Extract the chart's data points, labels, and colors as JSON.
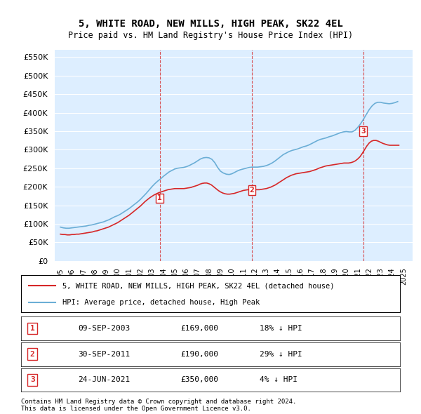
{
  "title": "5, WHITE ROAD, NEW MILLS, HIGH PEAK, SK22 4EL",
  "subtitle": "Price paid vs. HM Land Registry's House Price Index (HPI)",
  "legend_line1": "5, WHITE ROAD, NEW MILLS, HIGH PEAK, SK22 4EL (detached house)",
  "legend_line2": "HPI: Average price, detached house, High Peak",
  "footer1": "Contains HM Land Registry data © Crown copyright and database right 2024.",
  "footer2": "This data is licensed under the Open Government Licence v3.0.",
  "transactions": [
    {
      "num": 1,
      "date": "09-SEP-2003",
      "price": 169000,
      "hpi_diff": "18% ↓ HPI"
    },
    {
      "num": 2,
      "date": "30-SEP-2011",
      "price": 190000,
      "hpi_diff": "29% ↓ HPI"
    },
    {
      "num": 3,
      "date": "24-JUN-2021",
      "price": 350000,
      "hpi_diff": "4% ↓ HPI"
    }
  ],
  "vline_dates": [
    2003.69,
    2011.75,
    2021.48
  ],
  "hpi_color": "#6baed6",
  "price_color": "#d62728",
  "vline_color": "#d62728",
  "background_chart": "#ddeeff",
  "ylim": [
    0,
    570000
  ],
  "yticks": [
    0,
    50000,
    100000,
    150000,
    200000,
    250000,
    300000,
    350000,
    400000,
    450000,
    500000,
    550000
  ],
  "xlim_start": 1994.5,
  "xlim_end": 2025.8,
  "hpi_x": [
    1995.0,
    1995.25,
    1995.5,
    1995.75,
    1996.0,
    1996.25,
    1996.5,
    1996.75,
    1997.0,
    1997.25,
    1997.5,
    1997.75,
    1998.0,
    1998.25,
    1998.5,
    1998.75,
    1999.0,
    1999.25,
    1999.5,
    1999.75,
    2000.0,
    2000.25,
    2000.5,
    2000.75,
    2001.0,
    2001.25,
    2001.5,
    2001.75,
    2002.0,
    2002.25,
    2002.5,
    2002.75,
    2003.0,
    2003.25,
    2003.5,
    2003.75,
    2004.0,
    2004.25,
    2004.5,
    2004.75,
    2005.0,
    2005.25,
    2005.5,
    2005.75,
    2006.0,
    2006.25,
    2006.5,
    2006.75,
    2007.0,
    2007.25,
    2007.5,
    2007.75,
    2008.0,
    2008.25,
    2008.5,
    2008.75,
    2009.0,
    2009.25,
    2009.5,
    2009.75,
    2010.0,
    2010.25,
    2010.5,
    2010.75,
    2011.0,
    2011.25,
    2011.5,
    2011.75,
    2012.0,
    2012.25,
    2012.5,
    2012.75,
    2013.0,
    2013.25,
    2013.5,
    2013.75,
    2014.0,
    2014.25,
    2014.5,
    2014.75,
    2015.0,
    2015.25,
    2015.5,
    2015.75,
    2016.0,
    2016.25,
    2016.5,
    2016.75,
    2017.0,
    2017.25,
    2017.5,
    2017.75,
    2018.0,
    2018.25,
    2018.5,
    2018.75,
    2019.0,
    2019.25,
    2019.5,
    2019.75,
    2020.0,
    2020.25,
    2020.5,
    2020.75,
    2021.0,
    2021.25,
    2021.5,
    2021.75,
    2022.0,
    2022.25,
    2022.5,
    2022.75,
    2023.0,
    2023.25,
    2023.5,
    2023.75,
    2024.0,
    2024.25,
    2024.5
  ],
  "hpi_y": [
    91000,
    89000,
    88000,
    88000,
    89000,
    90000,
    91000,
    92000,
    93000,
    94000,
    96000,
    97000,
    99000,
    101000,
    103000,
    105000,
    108000,
    111000,
    115000,
    119000,
    122000,
    126000,
    131000,
    136000,
    141000,
    147000,
    153000,
    159000,
    166000,
    174000,
    182000,
    191000,
    200000,
    208000,
    215000,
    221000,
    228000,
    234000,
    240000,
    244000,
    248000,
    250000,
    251000,
    252000,
    254000,
    257000,
    261000,
    265000,
    270000,
    275000,
    278000,
    279000,
    278000,
    274000,
    265000,
    252000,
    242000,
    237000,
    234000,
    233000,
    235000,
    239000,
    243000,
    246000,
    248000,
    250000,
    252000,
    253000,
    253000,
    253000,
    254000,
    255000,
    257000,
    260000,
    264000,
    269000,
    275000,
    281000,
    287000,
    291000,
    295000,
    298000,
    300000,
    302000,
    305000,
    308000,
    310000,
    313000,
    317000,
    321000,
    325000,
    328000,
    330000,
    332000,
    335000,
    337000,
    340000,
    343000,
    346000,
    348000,
    349000,
    348000,
    348000,
    352000,
    360000,
    370000,
    382000,
    395000,
    408000,
    418000,
    425000,
    428000,
    428000,
    426000,
    425000,
    424000,
    425000,
    427000,
    430000
  ],
  "price_x": [
    1995.0,
    1995.2,
    1995.4,
    1995.6,
    1995.8,
    1996.0,
    1996.2,
    1996.4,
    1996.6,
    1996.8,
    1997.0,
    1997.2,
    1997.4,
    1997.6,
    1997.8,
    1998.0,
    1998.2,
    1998.4,
    1998.6,
    1998.8,
    1999.0,
    1999.2,
    1999.4,
    1999.6,
    1999.8,
    2000.0,
    2000.2,
    2000.4,
    2000.6,
    2000.8,
    2001.0,
    2001.2,
    2001.4,
    2001.6,
    2001.8,
    2002.0,
    2002.2,
    2002.4,
    2002.6,
    2002.8,
    2003.0,
    2003.2,
    2003.4,
    2003.6,
    2003.8,
    2004.0,
    2004.2,
    2004.4,
    2004.6,
    2004.8,
    2005.0,
    2005.2,
    2005.4,
    2005.6,
    2005.8,
    2006.0,
    2006.2,
    2006.4,
    2006.6,
    2006.8,
    2007.0,
    2007.2,
    2007.4,
    2007.6,
    2007.8,
    2008.0,
    2008.2,
    2008.4,
    2008.6,
    2008.8,
    2009.0,
    2009.2,
    2009.4,
    2009.6,
    2009.8,
    2010.0,
    2010.2,
    2010.4,
    2010.6,
    2010.8,
    2011.0,
    2011.2,
    2011.4,
    2011.6,
    2011.8,
    2012.0,
    2012.2,
    2012.4,
    2012.6,
    2012.8,
    2013.0,
    2013.2,
    2013.4,
    2013.6,
    2013.8,
    2014.0,
    2014.2,
    2014.4,
    2014.6,
    2014.8,
    2015.0,
    2015.2,
    2015.4,
    2015.6,
    2015.8,
    2016.0,
    2016.2,
    2016.4,
    2016.6,
    2016.8,
    2017.0,
    2017.2,
    2017.4,
    2017.6,
    2017.8,
    2018.0,
    2018.2,
    2018.4,
    2018.6,
    2018.8,
    2019.0,
    2019.2,
    2019.4,
    2019.6,
    2019.8,
    2020.0,
    2020.2,
    2020.4,
    2020.6,
    2020.8,
    2021.0,
    2021.2,
    2021.4,
    2021.6,
    2021.8,
    2022.0,
    2022.2,
    2022.4,
    2022.6,
    2022.8,
    2023.0,
    2023.2,
    2023.4,
    2023.6,
    2023.8,
    2024.0,
    2024.2,
    2024.4,
    2024.6
  ],
  "price_y": [
    72000,
    71000,
    71000,
    70000,
    70000,
    71000,
    71000,
    72000,
    72000,
    73000,
    74000,
    75000,
    76000,
    77000,
    78000,
    80000,
    81000,
    83000,
    85000,
    87000,
    89000,
    91000,
    94000,
    97000,
    100000,
    103000,
    107000,
    111000,
    115000,
    119000,
    123000,
    128000,
    133000,
    138000,
    143000,
    148000,
    154000,
    160000,
    165000,
    170000,
    174000,
    178000,
    181000,
    184000,
    186000,
    188000,
    190000,
    192000,
    193000,
    194000,
    195000,
    195000,
    195000,
    195000,
    195000,
    196000,
    197000,
    198000,
    200000,
    202000,
    204000,
    207000,
    209000,
    210000,
    210000,
    208000,
    205000,
    200000,
    195000,
    190000,
    186000,
    183000,
    181000,
    180000,
    180000,
    181000,
    182000,
    184000,
    186000,
    188000,
    190000,
    191000,
    192000,
    192000,
    192000,
    192000,
    192000,
    192000,
    193000,
    194000,
    195000,
    197000,
    199000,
    202000,
    205000,
    209000,
    213000,
    217000,
    221000,
    225000,
    228000,
    231000,
    233000,
    235000,
    236000,
    237000,
    238000,
    239000,
    240000,
    241000,
    243000,
    245000,
    247000,
    250000,
    252000,
    254000,
    256000,
    257000,
    258000,
    259000,
    260000,
    261000,
    262000,
    263000,
    264000,
    264000,
    264000,
    265000,
    267000,
    270000,
    275000,
    281000,
    290000,
    300000,
    310000,
    318000,
    323000,
    325000,
    325000,
    323000,
    320000,
    317000,
    315000,
    313000,
    312000,
    312000,
    312000,
    312000,
    312000
  ]
}
